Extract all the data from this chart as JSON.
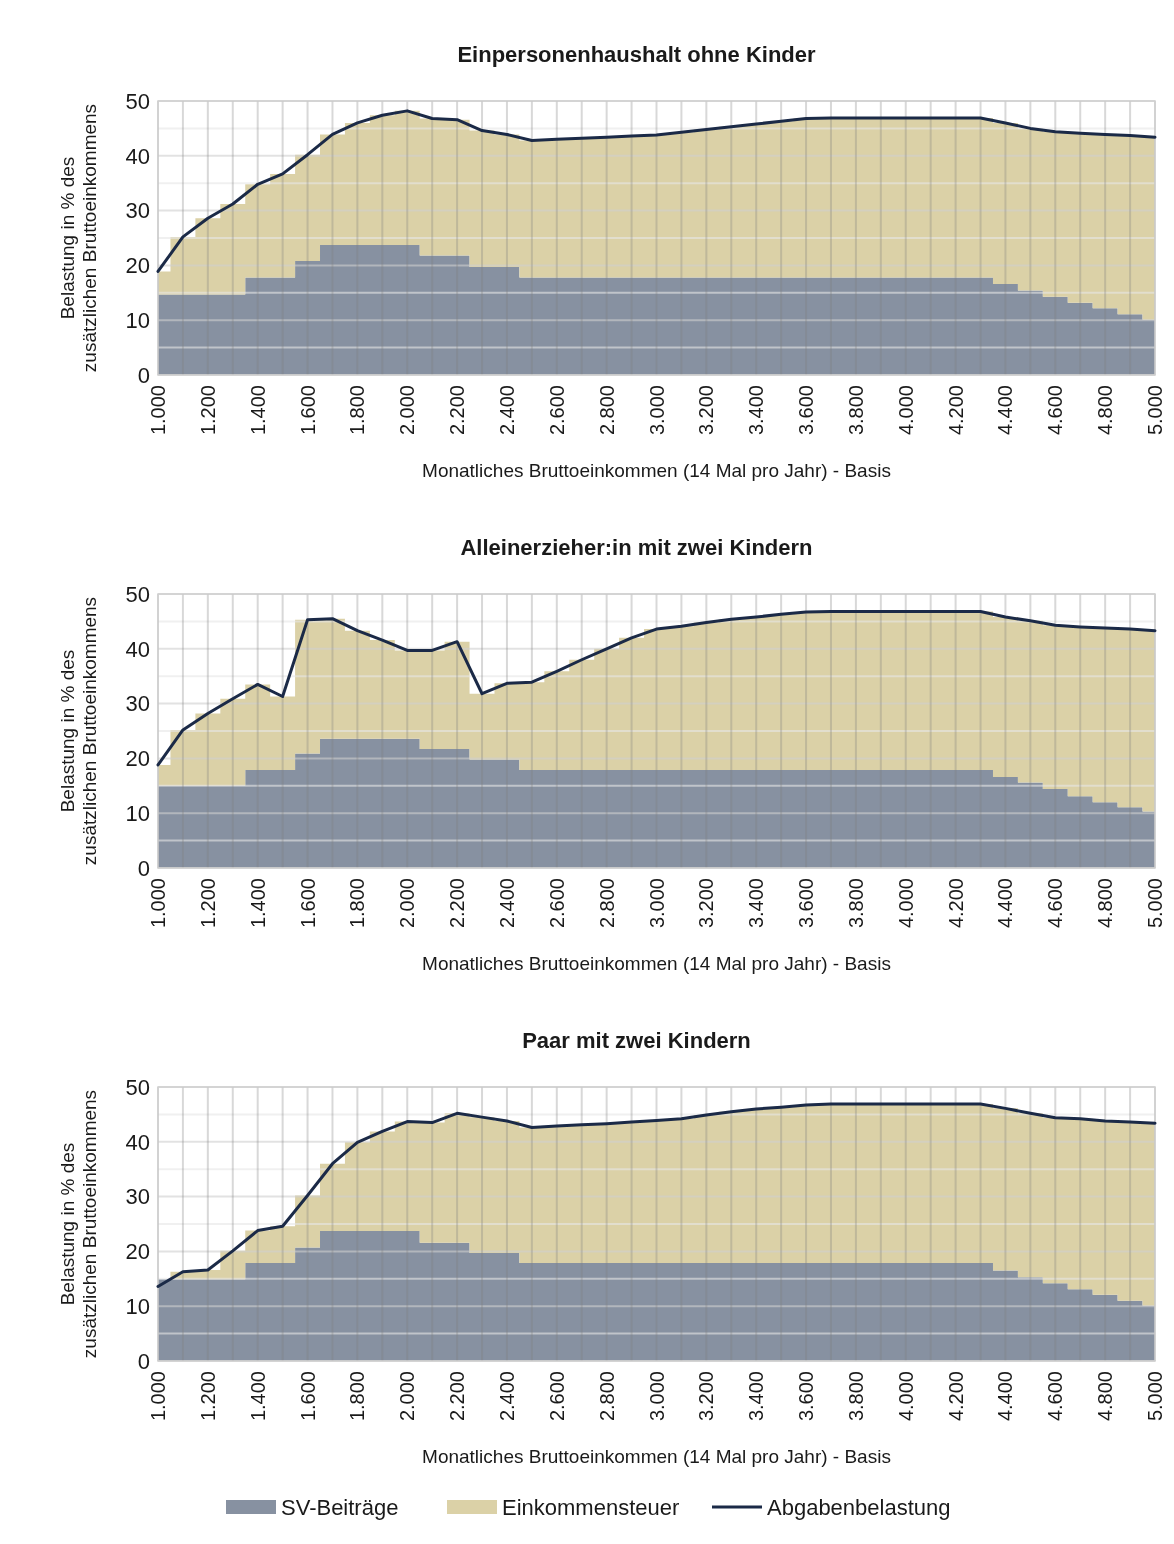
{
  "chart_data": [
    {
      "type": "area",
      "title": "Einpersonenhaushalt ohne Kinder",
      "xlabel": "Monatliches Bruttoeinkommen (14 Mal pro Jahr) - Basis",
      "ylabel": "Belastung in % des zusätzlichen Bruttoeinkommens",
      "stacked": true,
      "grid": true,
      "legend": "bottom",
      "x": [
        1000,
        1100,
        1200,
        1300,
        1400,
        1500,
        1600,
        1700,
        1800,
        1900,
        2000,
        2100,
        2200,
        2300,
        2400,
        2500,
        2600,
        2700,
        2800,
        2900,
        3000,
        3100,
        3200,
        3300,
        3400,
        3500,
        3600,
        3700,
        3800,
        3900,
        4000,
        4100,
        4200,
        4300,
        4400,
        4500,
        4600,
        4700,
        4800,
        4900,
        5000
      ],
      "xlim": [
        1000,
        5000
      ],
      "xticks": [
        {
          "value": 1000,
          "label": "1.000"
        },
        {
          "value": 1100,
          "label": null
        },
        {
          "value": 1200,
          "label": "1.200"
        },
        {
          "value": 1300,
          "label": null
        },
        {
          "value": 1400,
          "label": "1.400"
        },
        {
          "value": 1500,
          "label": null
        },
        {
          "value": 1600,
          "label": "1.600"
        },
        {
          "value": 1700,
          "label": null
        },
        {
          "value": 1800,
          "label": "1.800"
        },
        {
          "value": 1900,
          "label": null
        },
        {
          "value": 2000,
          "label": "2.000"
        },
        {
          "value": 2100,
          "label": null
        },
        {
          "value": 2200,
          "label": "2.200"
        },
        {
          "value": 2300,
          "label": null
        },
        {
          "value": 2400,
          "label": "2.400"
        },
        {
          "value": 2500,
          "label": null
        },
        {
          "value": 2600,
          "label": "2.600"
        },
        {
          "value": 2700,
          "label": null
        },
        {
          "value": 2800,
          "label": "2.800"
        },
        {
          "value": 2900,
          "label": null
        },
        {
          "value": 3000,
          "label": "3.000"
        },
        {
          "value": 3100,
          "label": null
        },
        {
          "value": 3200,
          "label": "3.200"
        },
        {
          "value": 3300,
          "label": null
        },
        {
          "value": 3400,
          "label": "3.400"
        },
        {
          "value": 3500,
          "label": null
        },
        {
          "value": 3600,
          "label": "3.600"
        },
        {
          "value": 3700,
          "label": null
        },
        {
          "value": 3800,
          "label": "3.800"
        },
        {
          "value": 3900,
          "label": null
        },
        {
          "value": 4000,
          "label": "4.000"
        },
        {
          "value": 4100,
          "label": null
        },
        {
          "value": 4200,
          "label": "4.200"
        },
        {
          "value": 4300,
          "label": null
        },
        {
          "value": 4400,
          "label": "4.400"
        },
        {
          "value": 4500,
          "label": null
        },
        {
          "value": 4600,
          "label": "4.600"
        },
        {
          "value": 4700,
          "label": null
        },
        {
          "value": 4800,
          "label": "4.800"
        },
        {
          "value": 4900,
          "label": null
        },
        {
          "value": 5000,
          "label": "5.000"
        }
      ],
      "ylim": [
        0,
        50
      ],
      "yticks": [
        0,
        {
          "value": 5,
          "label": null
        },
        10,
        {
          "value": 15,
          "label": null
        },
        20,
        {
          "value": 25,
          "label": null
        },
        30,
        {
          "value": 35,
          "label": null
        },
        40,
        {
          "value": 45,
          "label": null
        },
        50
      ],
      "series": [
        {
          "name": "SV-Beiträge",
          "color": "#8791a1",
          "values": [
            14.7,
            14.7,
            14.7,
            14.7,
            17.8,
            17.8,
            20.8,
            23.7,
            23.7,
            23.7,
            23.7,
            21.8,
            21.8,
            19.7,
            19.7,
            17.8,
            17.8,
            17.8,
            17.8,
            17.8,
            17.8,
            17.8,
            17.8,
            17.8,
            17.8,
            17.8,
            17.8,
            17.8,
            17.8,
            17.8,
            17.8,
            17.8,
            17.8,
            17.8,
            16.6,
            15.4,
            14.3,
            13.2,
            12.2,
            11.1,
            10.1
          ]
        },
        {
          "name": "Einkommensteuer",
          "color": "#dbd1a7",
          "values": [
            4.2,
            10.5,
            13.9,
            16.5,
            17.0,
            18.9,
            19.4,
            20.2,
            22.3,
            23.7,
            24.5,
            25.0,
            24.8,
            24.9,
            24.2,
            25.0,
            25.2,
            25.4,
            25.6,
            25.8,
            26.0,
            26.5,
            27.0,
            27.5,
            28.0,
            28.5,
            29.0,
            29.1,
            29.1,
            29.1,
            29.1,
            29.1,
            29.1,
            29.1,
            29.4,
            29.6,
            30.1,
            30.9,
            31.7,
            32.6,
            33.3
          ]
        },
        {
          "name": "Abgabenbelastung",
          "type": "line",
          "color": "#1b2a47",
          "values": [
            18.9,
            25.2,
            28.6,
            31.2,
            34.8,
            36.7,
            40.2,
            43.9,
            46.0,
            47.4,
            48.2,
            46.8,
            46.6,
            44.6,
            43.9,
            42.8,
            43.0,
            43.2,
            43.4,
            43.6,
            43.8,
            44.3,
            44.8,
            45.3,
            45.8,
            46.3,
            46.8,
            46.9,
            46.9,
            46.9,
            46.9,
            46.9,
            46.9,
            46.9,
            46.0,
            45.0,
            44.4,
            44.1,
            43.9,
            43.7,
            43.4
          ]
        }
      ]
    },
    {
      "type": "area",
      "title": "Alleinerzieher:in mit zwei Kindern",
      "xlabel": "Monatliches Bruttoeinkommen (14 Mal pro Jahr) - Basis",
      "ylabel": "Belastung in % des zusätzlichen Bruttoeinkommens",
      "stacked": true,
      "grid": true,
      "x": [
        1000,
        1100,
        1200,
        1300,
        1400,
        1500,
        1600,
        1700,
        1800,
        1900,
        2000,
        2100,
        2200,
        2300,
        2400,
        2500,
        2600,
        2700,
        2800,
        2900,
        3000,
        3100,
        3200,
        3300,
        3400,
        3500,
        3600,
        3700,
        3800,
        3900,
        4000,
        4100,
        4200,
        4300,
        4400,
        4500,
        4600,
        4700,
        4800,
        4900,
        5000
      ],
      "xlim": [
        1000,
        5000
      ],
      "xticks": [
        {
          "value": 1000,
          "label": "1.000"
        },
        {
          "value": 1100,
          "label": null
        },
        {
          "value": 1200,
          "label": "1.200"
        },
        {
          "value": 1300,
          "label": null
        },
        {
          "value": 1400,
          "label": "1.400"
        },
        {
          "value": 1500,
          "label": null
        },
        {
          "value": 1600,
          "label": "1.600"
        },
        {
          "value": 1700,
          "label": null
        },
        {
          "value": 1800,
          "label": "1.800"
        },
        {
          "value": 1900,
          "label": null
        },
        {
          "value": 2000,
          "label": "2.000"
        },
        {
          "value": 2100,
          "label": null
        },
        {
          "value": 2200,
          "label": "2.200"
        },
        {
          "value": 2300,
          "label": null
        },
        {
          "value": 2400,
          "label": "2.400"
        },
        {
          "value": 2500,
          "label": null
        },
        {
          "value": 2600,
          "label": "2.600"
        },
        {
          "value": 2700,
          "label": null
        },
        {
          "value": 2800,
          "label": "2.800"
        },
        {
          "value": 2900,
          "label": null
        },
        {
          "value": 3000,
          "label": "3.000"
        },
        {
          "value": 3100,
          "label": null
        },
        {
          "value": 3200,
          "label": "3.200"
        },
        {
          "value": 3300,
          "label": null
        },
        {
          "value": 3400,
          "label": "3.400"
        },
        {
          "value": 3500,
          "label": null
        },
        {
          "value": 3600,
          "label": "3.600"
        },
        {
          "value": 3700,
          "label": null
        },
        {
          "value": 3800,
          "label": "3.800"
        },
        {
          "value": 3900,
          "label": null
        },
        {
          "value": 4000,
          "label": "4.000"
        },
        {
          "value": 4100,
          "label": null
        },
        {
          "value": 4200,
          "label": "4.200"
        },
        {
          "value": 4300,
          "label": null
        },
        {
          "value": 4400,
          "label": "4.400"
        },
        {
          "value": 4500,
          "label": null
        },
        {
          "value": 4600,
          "label": "4.600"
        },
        {
          "value": 4700,
          "label": null
        },
        {
          "value": 4800,
          "label": "4.800"
        },
        {
          "value": 4900,
          "label": null
        },
        {
          "value": 5000,
          "label": "5.000"
        }
      ],
      "ylim": [
        0,
        50
      ],
      "yticks": [
        0,
        {
          "value": 5,
          "label": null
        },
        10,
        {
          "value": 15,
          "label": null
        },
        20,
        {
          "value": 25,
          "label": null
        },
        30,
        {
          "value": 35,
          "label": null
        },
        40,
        {
          "value": 45,
          "label": null
        },
        50
      ],
      "series": [
        {
          "color": "#8791a1",
          "values": [
            15.0,
            15.0,
            15.0,
            15.0,
            17.9,
            17.9,
            20.9,
            23.6,
            23.6,
            23.6,
            23.6,
            21.7,
            21.7,
            19.8,
            19.8,
            17.9,
            17.9,
            17.9,
            17.9,
            17.9,
            17.9,
            17.9,
            17.9,
            17.9,
            17.9,
            17.9,
            17.9,
            17.9,
            17.9,
            17.9,
            17.9,
            17.9,
            17.9,
            17.9,
            16.6,
            15.6,
            14.4,
            13.1,
            12.0,
            11.1,
            10.3
          ]
        },
        {
          "color": "#dbd1a7",
          "values": [
            3.8,
            10.2,
            13.2,
            15.9,
            15.6,
            13.4,
            24.4,
            21.9,
            19.7,
            18.0,
            16.1,
            18.0,
            19.6,
            12.0,
            13.9,
            16.0,
            18.0,
            20.1,
            22.1,
            24.1,
            25.7,
            26.2,
            26.9,
            27.5,
            27.9,
            28.4,
            28.8,
            28.9,
            28.9,
            28.9,
            28.9,
            28.9,
            28.9,
            28.9,
            29.2,
            29.5,
            29.9,
            30.9,
            31.8,
            32.5,
            33.0
          ]
        },
        {
          "type": "line",
          "color": "#1b2a47",
          "values": [
            18.8,
            25.2,
            28.2,
            30.9,
            33.5,
            31.3,
            45.3,
            45.5,
            43.3,
            41.6,
            39.7,
            39.7,
            41.3,
            31.8,
            33.7,
            33.9,
            35.9,
            38.0,
            40.0,
            42.0,
            43.6,
            44.1,
            44.8,
            45.4,
            45.8,
            46.3,
            46.7,
            46.8,
            46.8,
            46.8,
            46.8,
            46.8,
            46.8,
            46.8,
            45.8,
            45.1,
            44.3,
            44.0,
            43.8,
            43.6,
            43.3
          ]
        }
      ]
    },
    {
      "type": "area",
      "title": "Paar mit zwei Kindern",
      "xlabel": "Monatliches Bruttoeinkommen (14 Mal pro Jahr) - Basis",
      "ylabel": "Belastung in % des zusätzlichen Bruttoeinkommens",
      "stacked": true,
      "grid": true,
      "x": [
        1000,
        1100,
        1200,
        1300,
        1400,
        1500,
        1600,
        1700,
        1800,
        1900,
        2000,
        2100,
        2200,
        2300,
        2400,
        2500,
        2600,
        2700,
        2800,
        2900,
        3000,
        3100,
        3200,
        3300,
        3400,
        3500,
        3600,
        3700,
        3800,
        3900,
        4000,
        4100,
        4200,
        4300,
        4400,
        4500,
        4600,
        4700,
        4800,
        4900,
        5000
      ],
      "xlim": [
        1000,
        5000
      ],
      "xticks": [
        {
          "value": 1000,
          "label": "1.000"
        },
        {
          "value": 1100,
          "label": null
        },
        {
          "value": 1200,
          "label": "1.200"
        },
        {
          "value": 1300,
          "label": null
        },
        {
          "value": 1400,
          "label": "1.400"
        },
        {
          "value": 1500,
          "label": null
        },
        {
          "value": 1600,
          "label": "1.600"
        },
        {
          "value": 1700,
          "label": null
        },
        {
          "value": 1800,
          "label": "1.800"
        },
        {
          "value": 1900,
          "label": null
        },
        {
          "value": 2000,
          "label": "2.000"
        },
        {
          "value": 2100,
          "label": null
        },
        {
          "value": 2200,
          "label": "2.200"
        },
        {
          "value": 2300,
          "label": null
        },
        {
          "value": 2400,
          "label": "2.400"
        },
        {
          "value": 2500,
          "label": null
        },
        {
          "value": 2600,
          "label": "2.600"
        },
        {
          "value": 2700,
          "label": null
        },
        {
          "value": 2800,
          "label": "2.800"
        },
        {
          "value": 2900,
          "label": null
        },
        {
          "value": 3000,
          "label": "3.000"
        },
        {
          "value": 3100,
          "label": null
        },
        {
          "value": 3200,
          "label": "3.200"
        },
        {
          "value": 3300,
          "label": null
        },
        {
          "value": 3400,
          "label": "3.400"
        },
        {
          "value": 3500,
          "label": null
        },
        {
          "value": 3600,
          "label": "3.600"
        },
        {
          "value": 3700,
          "label": null
        },
        {
          "value": 3800,
          "label": "3.800"
        },
        {
          "value": 3900,
          "label": null
        },
        {
          "value": 4000,
          "label": "4.000"
        },
        {
          "value": 4100,
          "label": null
        },
        {
          "value": 4200,
          "label": "4.200"
        },
        {
          "value": 4300,
          "label": null
        },
        {
          "value": 4400,
          "label": "4.400"
        },
        {
          "value": 4500,
          "label": null
        },
        {
          "value": 4600,
          "label": "4.600"
        },
        {
          "value": 4700,
          "label": null
        },
        {
          "value": 4800,
          "label": "4.800"
        },
        {
          "value": 4900,
          "label": null
        },
        {
          "value": 5000,
          "label": "5.000"
        }
      ],
      "ylim": [
        0,
        50
      ],
      "yticks": [
        0,
        {
          "value": 5,
          "label": null
        },
        10,
        {
          "value": 15,
          "label": null
        },
        20,
        {
          "value": 25,
          "label": null
        },
        30,
        {
          "value": 35,
          "label": null
        },
        40,
        {
          "value": 45,
          "label": null
        },
        50
      ],
      "series": [
        {
          "color": "#8791a1",
          "values": [
            14.9,
            14.9,
            14.9,
            14.9,
            17.9,
            17.9,
            20.7,
            23.7,
            23.7,
            23.7,
            23.7,
            21.6,
            21.6,
            19.7,
            19.7,
            17.9,
            17.9,
            17.9,
            17.9,
            17.9,
            17.9,
            17.9,
            17.9,
            17.9,
            17.9,
            17.9,
            17.9,
            17.9,
            17.9,
            17.9,
            17.9,
            17.9,
            17.9,
            17.9,
            16.5,
            15.3,
            14.2,
            13.1,
            12.1,
            11.0,
            10.1
          ]
        },
        {
          "color": "#dbd1a7",
          "values": [
            0,
            1.4,
            1.7,
            5.2,
            5.9,
            6.7,
            9.5,
            12.3,
            16.2,
            18.2,
            20.0,
            21.9,
            23.6,
            24.8,
            24.1,
            24.7,
            25.0,
            25.2,
            25.4,
            25.7,
            26.0,
            26.3,
            27.0,
            27.6,
            28.1,
            28.4,
            28.8,
            29.0,
            29.0,
            29.0,
            29.0,
            29.0,
            29.0,
            29.0,
            29.6,
            29.9,
            30.2,
            31.1,
            31.7,
            32.6,
            33.3
          ]
        },
        {
          "type": "line",
          "color": "#1b2a47",
          "values": [
            13.6,
            16.3,
            16.6,
            20.1,
            23.8,
            24.6,
            30.2,
            36.0,
            39.9,
            41.9,
            43.7,
            43.5,
            45.2,
            44.5,
            43.8,
            42.6,
            42.9,
            43.1,
            43.3,
            43.6,
            43.9,
            44.2,
            44.9,
            45.5,
            46.0,
            46.3,
            46.7,
            46.9,
            46.9,
            46.9,
            46.9,
            46.9,
            46.9,
            46.9,
            46.1,
            45.2,
            44.4,
            44.2,
            43.8,
            43.6,
            43.4
          ]
        }
      ]
    }
  ]
}
